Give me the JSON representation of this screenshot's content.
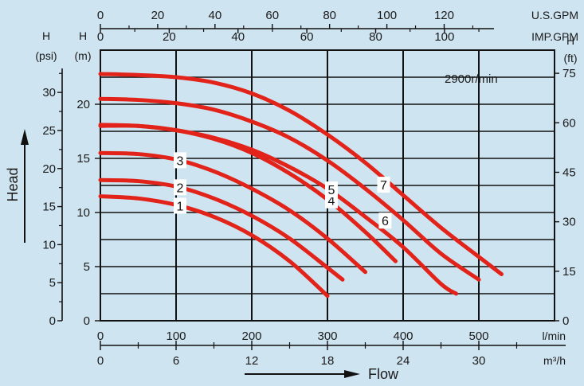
{
  "chart_data": {
    "type": "line",
    "speed_label": "2900r/min",
    "y_axis_title": "Head",
    "x_axis_title": "Flow",
    "axes": {
      "us_gpm": {
        "unit": "U.S.GPM",
        "ticks": [
          "0",
          "20",
          "40",
          "60",
          "80",
          "100",
          "120"
        ]
      },
      "imp_gpm": {
        "unit": "IMP.GPM",
        "ticks": [
          "0",
          "20",
          "40",
          "60",
          "80",
          "100"
        ]
      },
      "l_min": {
        "unit": "l/min",
        "ticks": [
          "0",
          "100",
          "200",
          "300",
          "400",
          "500"
        ]
      },
      "m3h": {
        "unit": "m³/h",
        "ticks": [
          "0",
          "6",
          "12",
          "18",
          "24",
          "30"
        ]
      },
      "psi": {
        "unit_top": "H",
        "unit_bottom": "(psi)",
        "ticks": [
          "0",
          "5",
          "10",
          "15",
          "20",
          "25",
          "30"
        ]
      },
      "m": {
        "unit_top": "H",
        "unit_bottom": "(m)",
        "ticks": [
          "0",
          "5",
          "10",
          "15",
          "20"
        ]
      },
      "ft": {
        "unit_top": "H",
        "unit_bottom": "(ft)",
        "ticks": [
          "0",
          "15",
          "30",
          "45",
          "60",
          "75"
        ]
      }
    },
    "xlim_lmin": [
      0,
      600
    ],
    "ylim_m": [
      0,
      25
    ],
    "series": [
      {
        "name": "1",
        "points": [
          [
            0,
            11.5
          ],
          [
            50,
            11.3
          ],
          [
            100,
            10.7
          ],
          [
            150,
            9.6
          ],
          [
            200,
            7.9
          ],
          [
            250,
            5.5
          ],
          [
            300,
            2.3
          ]
        ]
      },
      {
        "name": "2",
        "points": [
          [
            0,
            13.0
          ],
          [
            50,
            12.9
          ],
          [
            100,
            12.4
          ],
          [
            150,
            11.3
          ],
          [
            200,
            9.7
          ],
          [
            250,
            7.6
          ],
          [
            300,
            4.9
          ],
          [
            320,
            3.8
          ]
        ]
      },
      {
        "name": "3",
        "points": [
          [
            0,
            15.5
          ],
          [
            50,
            15.4
          ],
          [
            100,
            14.9
          ],
          [
            150,
            13.8
          ],
          [
            200,
            12.2
          ],
          [
            250,
            10.2
          ],
          [
            300,
            7.6
          ],
          [
            350,
            4.5
          ]
        ]
      },
      {
        "name": "4",
        "points": [
          [
            0,
            18.0
          ],
          [
            50,
            18.0
          ],
          [
            100,
            17.6
          ],
          [
            150,
            16.8
          ],
          [
            200,
            15.5
          ],
          [
            250,
            13.6
          ],
          [
            300,
            11.2
          ],
          [
            350,
            8.2
          ],
          [
            390,
            5.5
          ]
        ]
      },
      {
        "name": "5",
        "points": [
          [
            0,
            18.1
          ],
          [
            50,
            18.0
          ],
          [
            100,
            17.6
          ],
          [
            150,
            16.9
          ],
          [
            200,
            15.8
          ],
          [
            250,
            14.2
          ],
          [
            300,
            12.2
          ],
          [
            350,
            9.6
          ],
          [
            400,
            6.8
          ],
          [
            450,
            3.4
          ],
          [
            470,
            2.5
          ]
        ]
      },
      {
        "name": "6",
        "points": [
          [
            0,
            20.5
          ],
          [
            50,
            20.4
          ],
          [
            100,
            20.1
          ],
          [
            150,
            19.5
          ],
          [
            200,
            18.4
          ],
          [
            250,
            16.9
          ],
          [
            300,
            14.8
          ],
          [
            350,
            12.2
          ],
          [
            400,
            9.3
          ],
          [
            450,
            6.2
          ],
          [
            500,
            3.8
          ]
        ]
      },
      {
        "name": "7",
        "points": [
          [
            0,
            22.8
          ],
          [
            50,
            22.7
          ],
          [
            100,
            22.5
          ],
          [
            150,
            22.0
          ],
          [
            200,
            21.0
          ],
          [
            250,
            19.4
          ],
          [
            300,
            17.2
          ],
          [
            350,
            14.6
          ],
          [
            400,
            11.6
          ],
          [
            450,
            8.6
          ],
          [
            500,
            5.9
          ],
          [
            530,
            4.3
          ]
        ]
      }
    ],
    "curve_labels": [
      "1",
      "2",
      "3",
      "4",
      "5",
      "6",
      "7"
    ],
    "grid": true,
    "legend": "none"
  }
}
